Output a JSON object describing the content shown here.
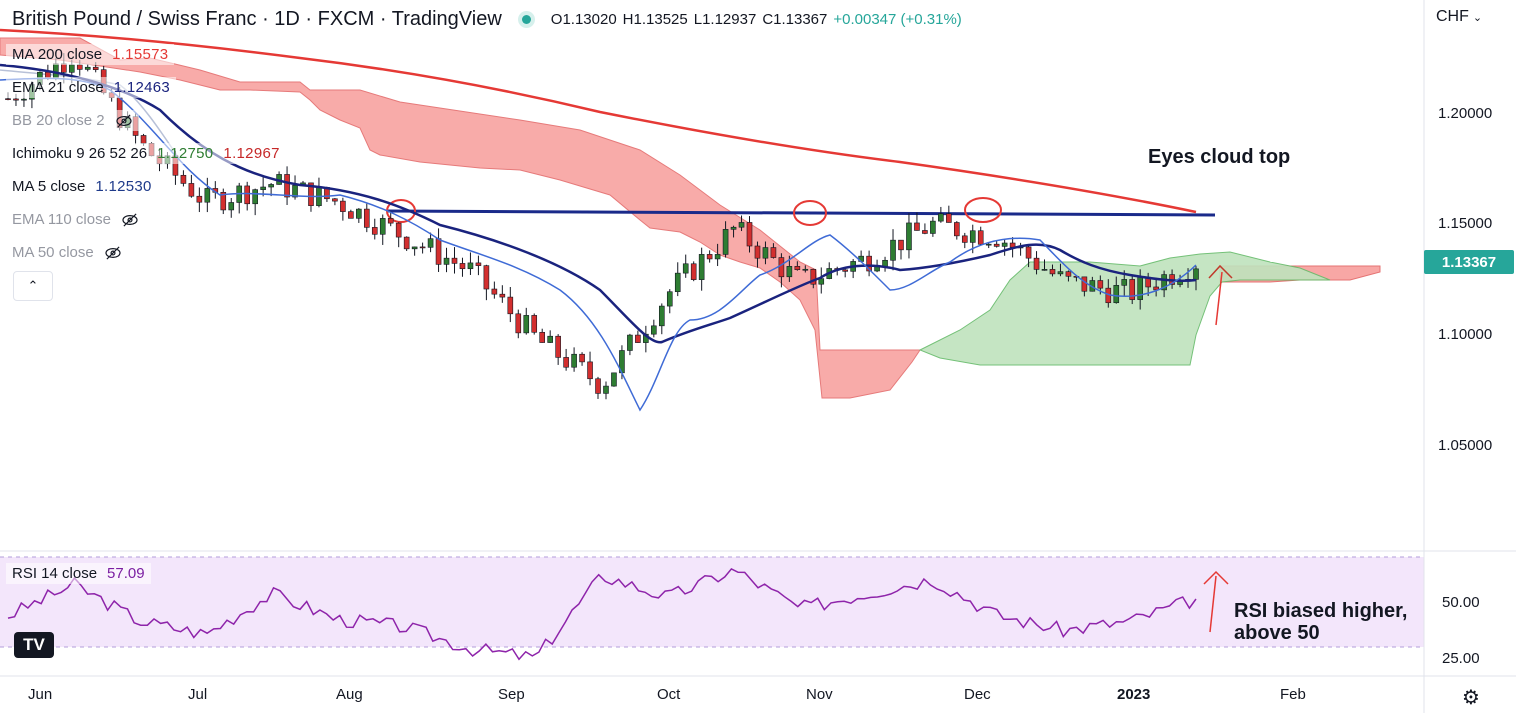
{
  "header": {
    "title": "British Pound / Swiss Franc · 1D · FXCM · TradingView",
    "status_color": "#26a69a",
    "ohlc": {
      "open": "O1.13020",
      "high": "H1.13525",
      "low": "L1.12937",
      "close": "C1.13367",
      "change": "+0.00347 (+0.31%)"
    }
  },
  "indicators": {
    "ma200": {
      "name": "MA 200 close",
      "value": "1.15573",
      "color": "#e53935"
    },
    "ema21": {
      "name": "EMA 21 close",
      "value": "1.12463",
      "color": "#1a237e"
    },
    "bb20": {
      "name": "BB 20 close 2",
      "hidden": true
    },
    "ichimoku": {
      "name": "Ichimoku 9 26 52 26",
      "value1": "1.12750",
      "value2": "1.12967"
    },
    "ma5": {
      "name": "MA 5 close",
      "value": "1.12530",
      "color": "#1e3a8a"
    },
    "ema110": {
      "name": "EMA 110 close",
      "hidden": true
    },
    "ma50": {
      "name": "MA 50 close",
      "hidden": true
    },
    "rsi": {
      "name": "RSI 14 close",
      "value": "57.09",
      "color": "#7b1fa2"
    }
  },
  "currency": "CHF",
  "last_price": "1.13367",
  "price_axis": [
    "1.20000",
    "1.15000",
    "1.10000",
    "1.05000"
  ],
  "rsi_axis": [
    "50.00",
    "25.00"
  ],
  "time_axis": [
    "Jun",
    "Jul",
    "Aug",
    "Sep",
    "Oct",
    "Nov",
    "Dec",
    "2023",
    "Feb"
  ],
  "annotations": {
    "cloud": "Eyes cloud top",
    "rsi_line1": "RSI biased higher,",
    "rsi_line2": "above 50"
  },
  "chart_data": [
    {
      "type": "line",
      "title": "British Pound / Swiss Franc · 1D · FXCM · TradingView",
      "ylim": [
        1.01,
        1.235
      ],
      "resistance_level": 1.154,
      "support_markers": [
        "Aug",
        "Nov",
        "Dec"
      ],
      "series": [
        {
          "name": "MA 200 close",
          "values": [
            1.232,
            1.228,
            1.222,
            1.216,
            1.208,
            1.198,
            1.188,
            1.179,
            1.171,
            1.163,
            1.156
          ]
        },
        {
          "name": "Close",
          "values": [
            1.205,
            1.225,
            1.185,
            1.16,
            1.168,
            1.16,
            1.145,
            1.13,
            1.1,
            1.08,
            1.12,
            1.148,
            1.125,
            1.135,
            1.15,
            1.145,
            1.125,
            1.12,
            1.13367
          ]
        }
      ]
    },
    {
      "type": "line",
      "title": "RSI 14 close",
      "ylim": [
        20,
        80
      ],
      "series": [
        {
          "name": "RSI 14 close",
          "values": [
            48,
            65,
            45,
            38,
            60,
            46,
            42,
            30,
            25,
            70,
            58,
            73,
            52,
            60,
            68,
            48,
            40,
            45,
            57.09
          ]
        }
      ]
    }
  ]
}
